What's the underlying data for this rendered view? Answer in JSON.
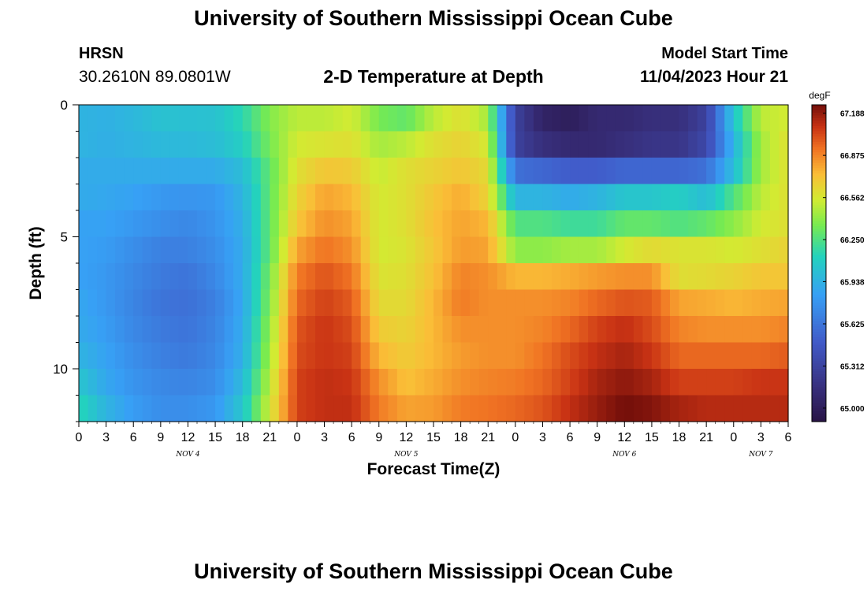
{
  "page": {
    "title": "University of Southern Mississippi Ocean Cube",
    "footer_title": "University of Southern Mississippi Ocean Cube"
  },
  "station": {
    "name": "HRSN",
    "coords": "30.2610N  89.0801W"
  },
  "model": {
    "start_label": "Model Start Time",
    "start_value": "11/04/2023 Hour 21"
  },
  "chart_data": {
    "type": "heatmap",
    "title": "2-D Temperature at Depth",
    "xlabel": "Forecast Time(Z)",
    "ylabel": "Depth (ft)",
    "x_range_hours": [
      0,
      78
    ],
    "x_ticks": [
      "0",
      "3",
      "6",
      "9",
      "12",
      "15",
      "18",
      "21",
      "0",
      "3",
      "6",
      "9",
      "12",
      "15",
      "18",
      "21",
      "0",
      "3",
      "6",
      "9",
      "12",
      "15",
      "18",
      "21",
      "0",
      "3",
      "6"
    ],
    "day_labels": [
      {
        "label": "NOV 4",
        "hour": 12
      },
      {
        "label": "NOV 5",
        "hour": 36
      },
      {
        "label": "NOV 6",
        "hour": 60
      },
      {
        "label": "NOV 7",
        "hour": 75
      }
    ],
    "y_ticks": [
      "0",
      "5",
      "10"
    ],
    "y_tick_values": [
      0,
      5,
      10
    ],
    "depth_range_ft": [
      0,
      12
    ],
    "depth_levels_ft": [
      0,
      1,
      2,
      3,
      4,
      5,
      6,
      7,
      8,
      9,
      10,
      11
    ],
    "colorbar": {
      "unit": "degF",
      "min": 64.9,
      "max": 67.25,
      "tick_labels": [
        "67.188",
        "66.875",
        "66.562",
        "66.250",
        "65.938",
        "65.625",
        "65.312",
        "65.000"
      ],
      "tick_values": [
        67.188,
        66.875,
        66.562,
        66.25,
        65.938,
        65.625,
        65.312,
        65.0
      ]
    },
    "time_hours": [
      0,
      3,
      6,
      9,
      12,
      15,
      18,
      21,
      24,
      27,
      30,
      33,
      36,
      39,
      42,
      45,
      48,
      51,
      54,
      57,
      60,
      63,
      66,
      69,
      72,
      75,
      78
    ],
    "temperature_degF": [
      [
        65.95,
        65.93,
        65.97,
        66.03,
        66.02,
        66.03,
        66.15,
        66.38,
        66.5,
        66.5,
        66.55,
        66.35,
        66.3,
        66.5,
        66.6,
        66.45,
        65.3,
        65.05,
        65.0,
        65.1,
        65.1,
        65.15,
        65.15,
        65.3,
        66.05,
        66.5,
        66.55
      ],
      [
        65.95,
        65.92,
        65.95,
        65.98,
        65.98,
        66.0,
        66.1,
        66.35,
        66.55,
        66.58,
        66.6,
        66.45,
        66.5,
        66.6,
        66.65,
        66.55,
        65.3,
        65.15,
        65.1,
        65.1,
        65.15,
        65.2,
        65.2,
        65.35,
        65.95,
        66.45,
        66.6
      ],
      [
        65.9,
        65.9,
        65.9,
        65.9,
        65.9,
        65.9,
        66.0,
        66.3,
        66.6,
        66.7,
        66.68,
        66.52,
        66.6,
        66.65,
        66.7,
        66.62,
        65.6,
        65.55,
        65.5,
        65.5,
        65.55,
        65.55,
        65.55,
        65.6,
        66.0,
        66.45,
        66.6
      ],
      [
        65.9,
        65.88,
        65.85,
        65.8,
        65.78,
        65.8,
        65.95,
        66.3,
        66.65,
        66.8,
        66.75,
        66.55,
        66.6,
        66.7,
        66.78,
        66.65,
        65.95,
        65.95,
        65.9,
        65.95,
        66.05,
        66.05,
        66.1,
        66.0,
        66.25,
        66.5,
        66.6
      ],
      [
        65.85,
        65.85,
        65.8,
        65.75,
        65.72,
        65.78,
        65.92,
        66.3,
        66.7,
        66.85,
        66.8,
        66.55,
        66.6,
        66.72,
        66.8,
        66.75,
        66.25,
        66.25,
        66.2,
        66.2,
        66.3,
        66.3,
        66.25,
        66.3,
        66.4,
        66.55,
        66.6
      ],
      [
        65.85,
        65.82,
        65.75,
        65.68,
        65.68,
        65.75,
        65.9,
        66.3,
        66.8,
        66.92,
        66.85,
        66.55,
        66.58,
        66.7,
        66.82,
        66.8,
        66.4,
        66.4,
        66.45,
        66.45,
        66.55,
        66.62,
        66.58,
        66.58,
        66.55,
        66.6,
        66.65
      ],
      [
        65.85,
        65.8,
        65.72,
        65.65,
        65.62,
        65.72,
        65.9,
        66.35,
        66.9,
        67.0,
        66.92,
        66.58,
        66.6,
        66.72,
        66.88,
        66.85,
        66.75,
        66.75,
        66.78,
        66.82,
        66.85,
        66.85,
        66.6,
        66.62,
        66.65,
        66.7,
        66.7
      ],
      [
        65.88,
        65.8,
        65.7,
        65.62,
        65.6,
        65.68,
        65.88,
        66.38,
        66.95,
        67.05,
        66.98,
        66.62,
        66.62,
        66.75,
        66.9,
        66.85,
        66.85,
        66.85,
        66.88,
        66.95,
        67.0,
        66.98,
        66.8,
        66.78,
        66.75,
        66.78,
        66.8
      ],
      [
        65.9,
        65.82,
        65.72,
        65.65,
        65.62,
        65.7,
        65.9,
        66.42,
        67.0,
        67.08,
        67.02,
        66.68,
        66.65,
        66.75,
        66.85,
        66.85,
        66.85,
        66.88,
        66.95,
        67.05,
        67.1,
        67.02,
        66.88,
        66.85,
        66.85,
        66.85,
        66.88
      ],
      [
        65.95,
        65.85,
        65.75,
        65.68,
        65.65,
        65.72,
        65.92,
        66.45,
        67.02,
        67.08,
        67.05,
        66.75,
        66.68,
        66.75,
        66.82,
        66.85,
        66.85,
        66.92,
        67.02,
        67.1,
        67.15,
        67.08,
        66.95,
        66.95,
        66.95,
        66.95,
        66.98
      ],
      [
        66.05,
        65.88,
        65.78,
        65.72,
        65.7,
        65.75,
        65.98,
        66.5,
        67.05,
        67.1,
        67.08,
        66.85,
        66.72,
        66.78,
        66.85,
        66.88,
        66.9,
        66.95,
        67.05,
        67.15,
        67.2,
        67.15,
        67.05,
        67.05,
        67.05,
        67.08,
        67.08
      ],
      [
        66.15,
        65.95,
        65.82,
        65.75,
        65.75,
        65.8,
        66.05,
        66.55,
        67.05,
        67.1,
        67.1,
        66.9,
        66.8,
        66.82,
        66.9,
        66.92,
        66.95,
        67.0,
        67.1,
        67.18,
        67.25,
        67.22,
        67.15,
        67.12,
        67.12,
        67.12,
        67.12
      ]
    ]
  }
}
